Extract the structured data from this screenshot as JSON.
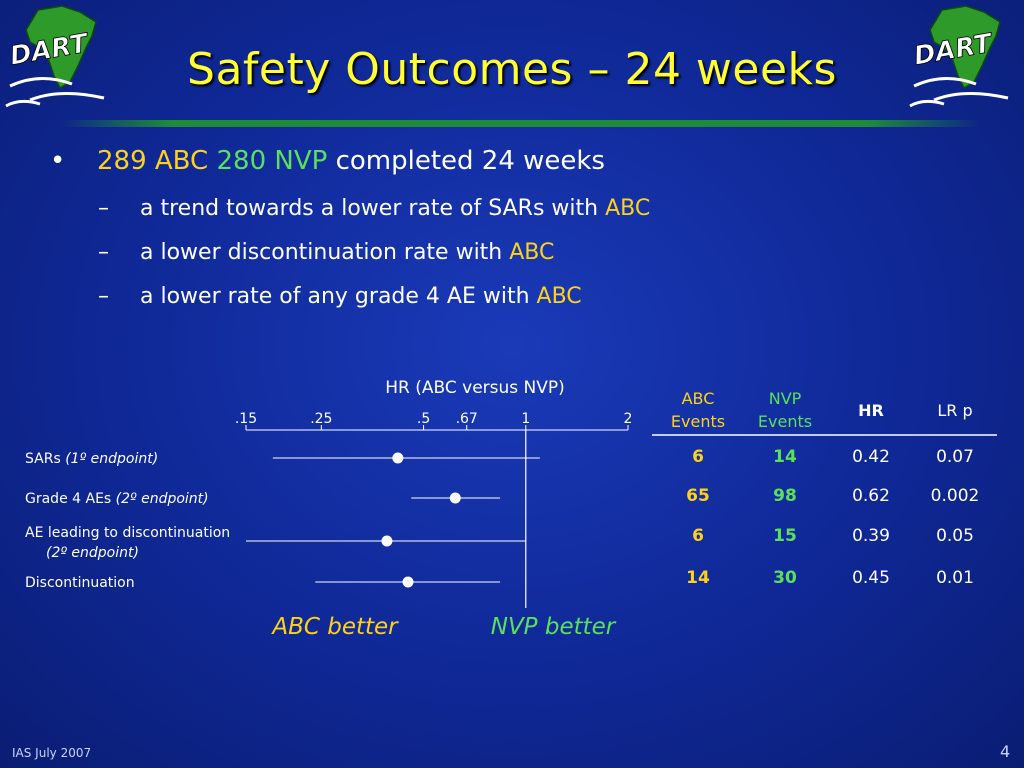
{
  "slide": {
    "title": "Safety Outcomes – 24 weeks",
    "logo_text": "DART",
    "footer_left": "IAS July 2007",
    "page_number": "4"
  },
  "bullets": {
    "main": {
      "marker": "•",
      "abc_count": "289 ABC",
      "nvp_count": "280 NVP",
      "rest": "completed 24 weeks"
    },
    "subs": [
      {
        "marker": "–",
        "text": "a trend towards a lower rate of SARs with",
        "highlight": "ABC"
      },
      {
        "marker": "–",
        "text": "a lower discontinuation rate with",
        "highlight": "ABC"
      },
      {
        "marker": "–",
        "text": "a lower rate of any grade 4 AE with",
        "highlight": "ABC"
      }
    ]
  },
  "chart_data": {
    "type": "forest",
    "title": "HR (ABC versus NVP)",
    "x_ticks": [
      {
        "value": 0.15,
        "label": ".15"
      },
      {
        "value": 0.25,
        "label": ".25"
      },
      {
        "value": 0.5,
        "label": ".5"
      },
      {
        "value": 0.67,
        "label": ".67"
      },
      {
        "value": 1,
        "label": "1"
      },
      {
        "value": 2,
        "label": "2"
      }
    ],
    "xlim": [
      0.15,
      2
    ],
    "scale": "log",
    "reference_value": 1,
    "rows": [
      {
        "label": "SARs",
        "label_note": "(1º endpoint)",
        "hr": 0.42,
        "ci_low": 0.18,
        "ci_high": 1.1
      },
      {
        "label": "Grade 4 AEs",
        "label_note": "(2º endpoint)",
        "hr": 0.62,
        "ci_low": 0.46,
        "ci_high": 0.84
      },
      {
        "label": "AE leading to discontinuation",
        "label_note": "(2º endpoint)",
        "hr": 0.39,
        "ci_low": 0.15,
        "ci_high": 1.0
      },
      {
        "label": "Discontinuation",
        "label_note": "",
        "hr": 0.45,
        "ci_low": 0.24,
        "ci_high": 0.84
      }
    ],
    "left_annotation": "ABC better",
    "right_annotation": "NVP better",
    "table": {
      "headers": [
        "ABC Events",
        "NVP Events",
        "HR",
        "LR p"
      ],
      "rows": [
        [
          "6",
          "14",
          "0.42",
          "0.07"
        ],
        [
          "65",
          "98",
          "0.62",
          "0.002"
        ],
        [
          "6",
          "15",
          "0.39",
          "0.05"
        ],
        [
          "14",
          "30",
          "0.45",
          "0.01"
        ]
      ]
    }
  },
  "colors": {
    "title": "#ffff33",
    "abc": "#ffd21a",
    "nvp": "#5be05b",
    "text": "#ffffff"
  }
}
